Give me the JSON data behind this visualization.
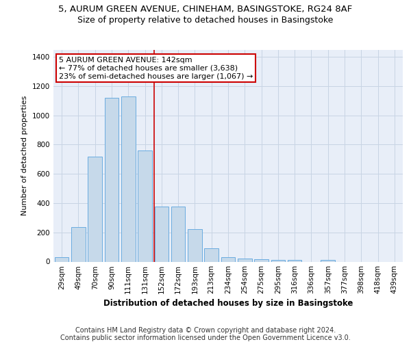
{
  "title_line1": "5, AURUM GREEN AVENUE, CHINEHAM, BASINGSTOKE, RG24 8AF",
  "title_line2": "Size of property relative to detached houses in Basingstoke",
  "xlabel": "Distribution of detached houses by size in Basingstoke",
  "ylabel": "Number of detached properties",
  "categories": [
    "29sqm",
    "49sqm",
    "70sqm",
    "90sqm",
    "111sqm",
    "131sqm",
    "152sqm",
    "172sqm",
    "193sqm",
    "213sqm",
    "234sqm",
    "254sqm",
    "275sqm",
    "295sqm",
    "316sqm",
    "336sqm",
    "357sqm",
    "377sqm",
    "398sqm",
    "418sqm",
    "439sqm"
  ],
  "values": [
    30,
    235,
    720,
    1120,
    1130,
    760,
    375,
    375,
    220,
    90,
    30,
    20,
    18,
    10,
    10,
    0,
    10,
    0,
    0,
    0,
    0
  ],
  "bar_color": "#c6d9ea",
  "bar_edge_color": "#6aace0",
  "grid_color": "#c8d4e4",
  "background_color": "#e8eef8",
  "annotation_text": "5 AURUM GREEN AVENUE: 142sqm\n← 77% of detached houses are smaller (3,638)\n23% of semi-detached houses are larger (1,067) →",
  "vline_x": 5.55,
  "vline_color": "#cc0000",
  "ylim": [
    0,
    1450
  ],
  "yticks": [
    0,
    200,
    400,
    600,
    800,
    1000,
    1200,
    1400
  ],
  "footer_text": "Contains HM Land Registry data © Crown copyright and database right 2024.\nContains public sector information licensed under the Open Government Licence v3.0.",
  "title_fontsize": 9.5,
  "subtitle_fontsize": 9,
  "annotation_fontsize": 8,
  "label_fontsize": 8.5,
  "tick_fontsize": 7.5,
  "footer_fontsize": 7,
  "ylabel_fontsize": 8
}
